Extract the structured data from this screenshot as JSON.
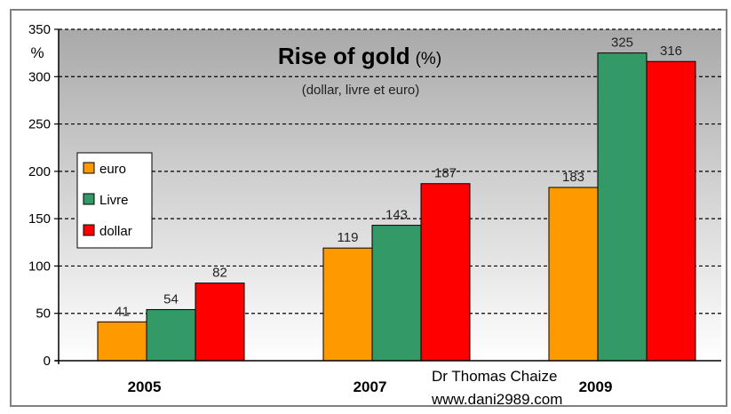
{
  "colors": {
    "euro": "#ff9900",
    "livre": "#339966",
    "dollar": "#ff0000",
    "plot_bg_top": "#a9a9a9",
    "plot_bg_bottom": "#ffffff",
    "gridline": "#000000"
  },
  "chart_data": {
    "type": "bar",
    "title": "Rise of gold",
    "title_unit": "(%)",
    "subtitle": "(dollar, livre et euro)",
    "ylabel": "%",
    "xlabel": "",
    "ylim": [
      0,
      350
    ],
    "yticks": [
      0,
      50,
      100,
      150,
      200,
      250,
      300,
      350
    ],
    "grid": true,
    "legend_position": "left",
    "categories": [
      "2005",
      "2007",
      "2009"
    ],
    "series": [
      {
        "name": "euro",
        "color": "#ff9900",
        "values": [
          41,
          119,
          183
        ]
      },
      {
        "name": "Livre",
        "color": "#339966",
        "values": [
          54,
          143,
          325
        ]
      },
      {
        "name": "dollar",
        "color": "#ff0000",
        "values": [
          82,
          187,
          316
        ]
      }
    ],
    "credit": [
      "Dr Thomas Chaize",
      "www.dani2989.com"
    ]
  }
}
